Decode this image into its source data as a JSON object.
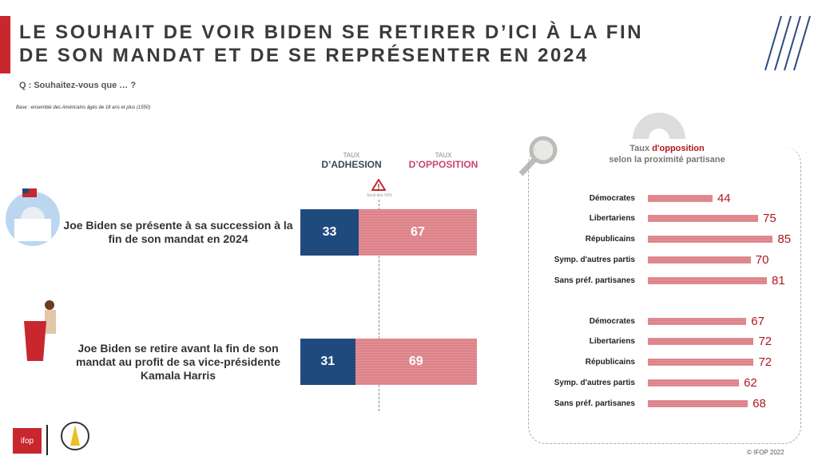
{
  "title": "LE SOUHAIT DE VOIR BIDEN SE RETIRER D’ICI À LA FIN DE SON MANDAT ET DE SE REPRÉSENTER EN 2024",
  "question": "Q : Souhaitez-vous que … ?",
  "base": "Base : ensemble des Américains âgés de 18 ans et plus (1550)",
  "headers": {
    "adh_top": "TAUX",
    "adh": "D’ADHESION",
    "opp_top": "TAUX",
    "opp": "D’OPPOSITION"
  },
  "threshold": "Seuil des 50%",
  "footer": "© IFOP 2022",
  "logo": "ifop",
  "colors": {
    "adhesion": "#1f4a7e",
    "opposition": "#d9767d",
    "accent": "#c8272e"
  },
  "chart_data": [
    {
      "type": "bar",
      "stacked": true,
      "orientation": "horizontal",
      "categories": [
        "Joe Biden se présente à sa succession à la fin de son mandat en 2024",
        "Joe Biden se retire avant la fin de son mandat au profit de sa vice-présidente Kamala Harris"
      ],
      "series": [
        {
          "name": "TAUX D’ADHESION",
          "values": [
            33,
            31
          ]
        },
        {
          "name": "TAUX D’OPPOSITION",
          "values": [
            67,
            69
          ]
        }
      ]
    },
    {
      "type": "bar",
      "orientation": "horizontal",
      "title": "Taux d'opposition selon la proximité partisane",
      "title_parts": [
        "Taux ",
        "d'opposition",
        " selon la proximité partisane"
      ],
      "groups": [
        {
          "categories": [
            "Démocrates",
            "Libertariens",
            "Républicains",
            "Symp. d'autres partis",
            "Sans préf. partisanes"
          ],
          "values": [
            44,
            75,
            85,
            70,
            81
          ]
        },
        {
          "categories": [
            "Démocrates",
            "Libertariens",
            "Républicains",
            "Symp. d'autres partis",
            "Sans préf. partisanes"
          ],
          "values": [
            67,
            72,
            72,
            62,
            68
          ]
        }
      ]
    }
  ]
}
